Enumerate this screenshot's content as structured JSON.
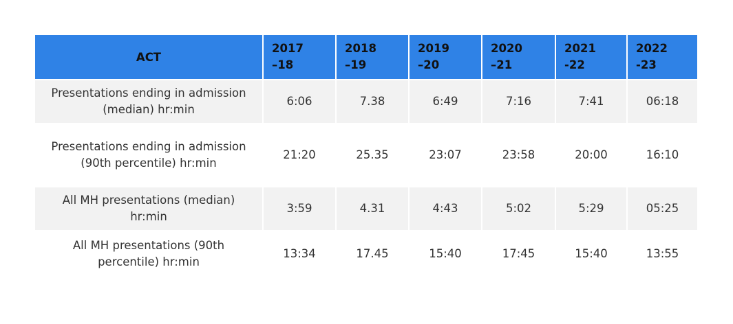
{
  "table": {
    "columns": [
      "ACT",
      "2017–18",
      "2018–19",
      "2019–20",
      "2020–21",
      "2021-22",
      "2022-23"
    ],
    "rows": [
      [
        "Presentations ending in admission (median) hr:min",
        "6:06",
        "7.38",
        "6:49",
        "7:16",
        "7:41",
        "06:18"
      ],
      [
        "Presentations ending in admission (90th percentile) hr:min",
        "21:20",
        "25.35",
        "23:07",
        "23:58",
        "20:00",
        "16:10"
      ],
      [
        "All MH presentations (median) hr:min",
        "3:59",
        "4.31",
        "4:43",
        "5:02",
        "5:29",
        "05:25"
      ],
      [
        "All MH presentations (90th percentile) hr:min",
        "13:34",
        "17.45",
        "15:40",
        "17:45",
        "15:40",
        "13:55"
      ]
    ]
  }
}
